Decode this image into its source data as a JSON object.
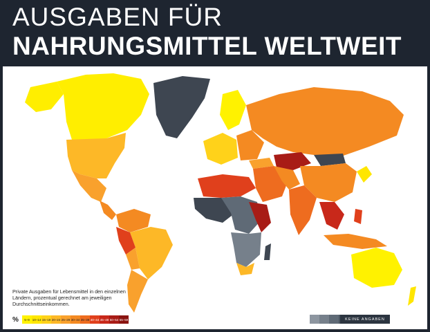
{
  "title": {
    "line1": "AUSGABEN FÜR",
    "line2": "NAHRUNGSMITTEL WELTWEIT"
  },
  "caption": "Private Ausgaben für Lebensmittel in den einzelnen Ländern, prozentual gerechnet am jeweiligen Durchschnittseinkommen.",
  "legend": {
    "unit": "%",
    "bins": [
      {
        "label": "5–9",
        "color": "#fff200"
      },
      {
        "label": "10–14",
        "color": "#ffe600"
      },
      {
        "label": "15–19",
        "color": "#ffd21a"
      },
      {
        "label": "20–24",
        "color": "#fdb827"
      },
      {
        "label": "25–29",
        "color": "#f9a12d"
      },
      {
        "label": "30–34",
        "color": "#f48a22"
      },
      {
        "label": "35–39",
        "color": "#ee6c1f"
      },
      {
        "label": "40–44",
        "color": "#e0401c"
      },
      {
        "label": "45–49",
        "color": "#c8281a"
      },
      {
        "label": "50–54",
        "color": "#a81c16"
      },
      {
        "label": "55–59",
        "color": "#8a1410"
      }
    ],
    "no_data": {
      "label": "KEINE ANGABEN",
      "colors": [
        "#8d96a0",
        "#76808b",
        "#5f6a76",
        "#4b5662",
        "#3a4450",
        "#2c3540"
      ]
    }
  }
}
